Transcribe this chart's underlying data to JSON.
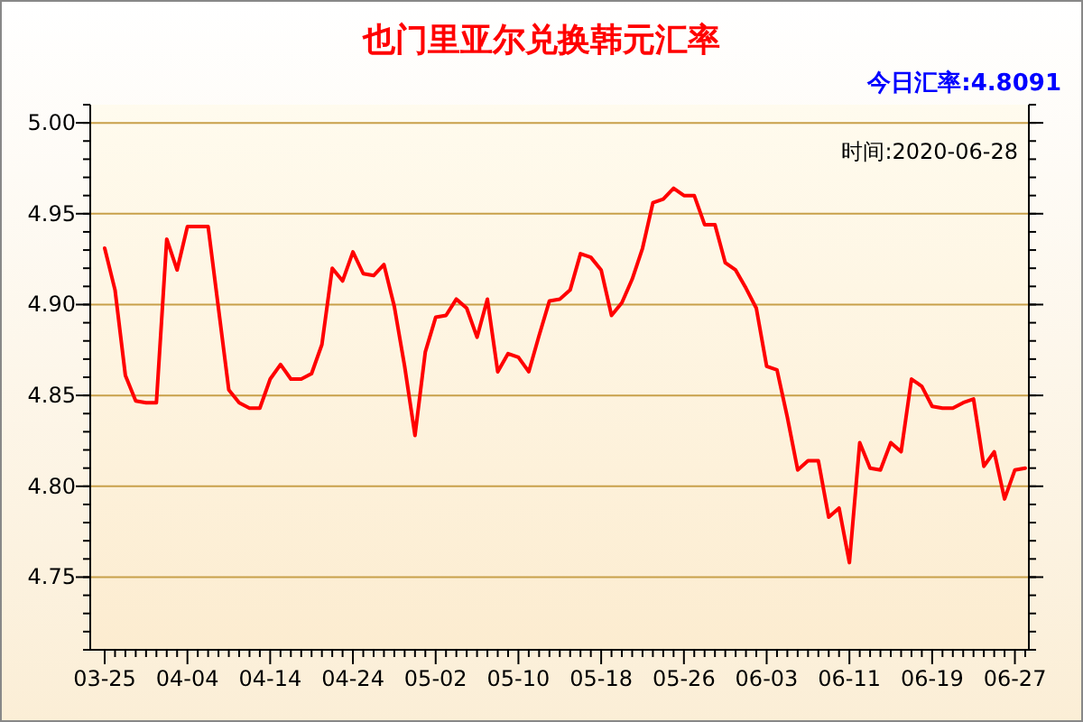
{
  "chart_data": {
    "type": "line",
    "title": "也门里亚尔兑换韩元汇率",
    "annotations": [
      "今日汇率:4.8091",
      "时间:2020-06-28"
    ],
    "categories": [
      "03-25",
      null,
      null,
      null,
      null,
      null,
      null,
      null,
      "04-04",
      null,
      null,
      null,
      null,
      null,
      null,
      null,
      "04-14",
      null,
      null,
      null,
      null,
      null,
      null,
      null,
      "04-24",
      null,
      null,
      null,
      null,
      null,
      null,
      null,
      "05-02",
      null,
      null,
      null,
      null,
      null,
      null,
      null,
      "05-10",
      null,
      null,
      null,
      null,
      null,
      null,
      null,
      "05-18",
      null,
      null,
      null,
      null,
      null,
      null,
      null,
      "05-26",
      null,
      null,
      null,
      null,
      null,
      null,
      null,
      "06-03",
      null,
      null,
      null,
      null,
      null,
      null,
      null,
      "06-11",
      null,
      null,
      null,
      null,
      null,
      null,
      null,
      "06-19",
      null,
      null,
      null,
      null,
      null,
      null,
      null,
      "06-27",
      null
    ],
    "series": [
      {
        "color": "#ff0000",
        "values": [
          4.931,
          4.908,
          4.861,
          4.847,
          4.846,
          4.846,
          4.936,
          4.919,
          4.943,
          4.943,
          4.943,
          4.898,
          4.853,
          4.846,
          4.843,
          4.843,
          4.859,
          4.867,
          4.859,
          4.859,
          4.862,
          4.878,
          4.92,
          4.913,
          4.929,
          4.917,
          4.916,
          4.922,
          4.899,
          4.866,
          4.828,
          4.874,
          4.893,
          4.894,
          4.903,
          4.898,
          4.882,
          4.903,
          4.863,
          4.873,
          4.871,
          4.863,
          4.883,
          4.902,
          4.903,
          4.908,
          4.928,
          4.926,
          4.919,
          4.894,
          4.901,
          4.914,
          4.931,
          4.956,
          4.958,
          4.964,
          4.96,
          4.96,
          4.944,
          4.944,
          4.923,
          4.919,
          4.909,
          4.898,
          4.866,
          4.864,
          4.838,
          4.809,
          4.814,
          4.814,
          4.783,
          4.788,
          4.758,
          4.824,
          4.81,
          4.809,
          4.824,
          4.819,
          4.859,
          4.855,
          4.844,
          4.843,
          4.843,
          4.846,
          4.848,
          4.811,
          4.819,
          4.793,
          4.809,
          4.81
        ]
      }
    ],
    "ylim": [
      4.71,
      5.01
    ],
    "yticks": [
      {
        "value": 4.75,
        "label": "4.75"
      },
      {
        "value": 4.8,
        "label": "4.80"
      },
      {
        "value": 4.85,
        "label": "4.85"
      },
      {
        "value": 4.9,
        "label": "4.90"
      },
      {
        "value": 4.95,
        "label": "4.95"
      },
      {
        "value": 5.0,
        "label": "5.00"
      }
    ],
    "grid": "y",
    "marker": "none",
    "line_style": "solid"
  }
}
